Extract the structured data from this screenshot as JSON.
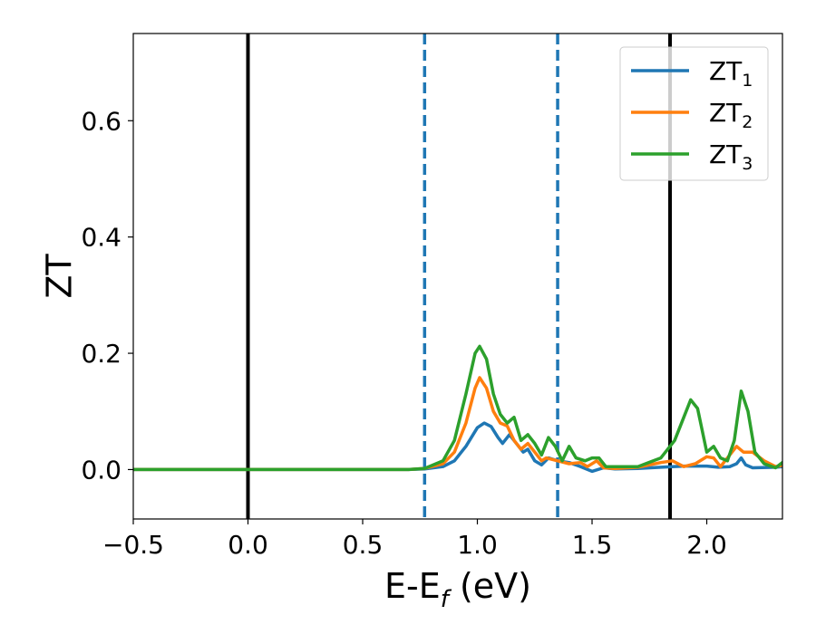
{
  "chart_data": {
    "type": "line",
    "xlabel": "E-E",
    "xlabel_sub": "f",
    "xlabel_unit": " (eV)",
    "ylabel": "ZT",
    "xlim": [
      -0.5,
      2.33
    ],
    "ylim": [
      -0.085,
      0.75
    ],
    "xticks": [
      -0.5,
      0.0,
      0.5,
      1.0,
      1.5,
      2.0
    ],
    "xtick_labels": [
      "−0.5",
      "0.0",
      "0.5",
      "1.0",
      "1.5",
      "2.0"
    ],
    "yticks": [
      0.0,
      0.2,
      0.4,
      0.6
    ],
    "ytick_labels": [
      "0.0",
      "0.2",
      "0.4",
      "0.6"
    ],
    "grid": false,
    "legend_position": "top-right",
    "vlines_solid": [
      0.0,
      1.84
    ],
    "vlines_dashed": [
      0.77,
      1.35
    ],
    "colors": {
      "zt1": "#1f77b4",
      "zt2": "#ff7f0e",
      "zt3": "#2ca02c",
      "solid_line": "#000000",
      "dashed_line": "#1f77b4"
    },
    "series": [
      {
        "name": "ZT",
        "sub": "1",
        "color": "#1f77b4",
        "points": [
          [
            -0.5,
            0
          ],
          [
            0.7,
            0
          ],
          [
            0.77,
            0.001
          ],
          [
            0.85,
            0.005
          ],
          [
            0.9,
            0.015
          ],
          [
            0.95,
            0.04
          ],
          [
            1.0,
            0.072
          ],
          [
            1.03,
            0.08
          ],
          [
            1.06,
            0.074
          ],
          [
            1.09,
            0.055
          ],
          [
            1.11,
            0.045
          ],
          [
            1.14,
            0.06
          ],
          [
            1.17,
            0.045
          ],
          [
            1.2,
            0.03
          ],
          [
            1.22,
            0.035
          ],
          [
            1.25,
            0.015
          ],
          [
            1.28,
            0.008
          ],
          [
            1.31,
            0.02
          ],
          [
            1.35,
            0.015
          ],
          [
            1.4,
            0.012
          ],
          [
            1.45,
            0.005
          ],
          [
            1.5,
            -0.003
          ],
          [
            1.55,
            0.003
          ],
          [
            1.6,
            0.001
          ],
          [
            1.7,
            0.002
          ],
          [
            1.8,
            0.004
          ],
          [
            1.9,
            0.006
          ],
          [
            2.0,
            0.006
          ],
          [
            2.05,
            0.004
          ],
          [
            2.1,
            0.005
          ],
          [
            2.13,
            0.01
          ],
          [
            2.15,
            0.02
          ],
          [
            2.17,
            0.008
          ],
          [
            2.2,
            0.003
          ],
          [
            2.3,
            0.004
          ],
          [
            2.33,
            0.005
          ]
        ]
      },
      {
        "name": "ZT",
        "sub": "2",
        "color": "#ff7f0e",
        "points": [
          [
            -0.5,
            0
          ],
          [
            0.7,
            0
          ],
          [
            0.77,
            0.002
          ],
          [
            0.85,
            0.01
          ],
          [
            0.9,
            0.03
          ],
          [
            0.95,
            0.08
          ],
          [
            0.99,
            0.14
          ],
          [
            1.01,
            0.158
          ],
          [
            1.04,
            0.14
          ],
          [
            1.07,
            0.1
          ],
          [
            1.1,
            0.08
          ],
          [
            1.13,
            0.075
          ],
          [
            1.16,
            0.05
          ],
          [
            1.19,
            0.035
          ],
          [
            1.22,
            0.045
          ],
          [
            1.25,
            0.03
          ],
          [
            1.28,
            0.015
          ],
          [
            1.3,
            0.02
          ],
          [
            1.35,
            0.015
          ],
          [
            1.4,
            0.01
          ],
          [
            1.45,
            0.012
          ],
          [
            1.48,
            0.005
          ],
          [
            1.52,
            0.015
          ],
          [
            1.55,
            0.003
          ],
          [
            1.6,
            0.002
          ],
          [
            1.7,
            0.004
          ],
          [
            1.8,
            0.012
          ],
          [
            1.85,
            0.015
          ],
          [
            1.9,
            0.005
          ],
          [
            1.95,
            0.01
          ],
          [
            2.0,
            0.022
          ],
          [
            2.03,
            0.02
          ],
          [
            2.06,
            0.005
          ],
          [
            2.1,
            0.025
          ],
          [
            2.13,
            0.04
          ],
          [
            2.16,
            0.03
          ],
          [
            2.2,
            0.03
          ],
          [
            2.25,
            0.015
          ],
          [
            2.3,
            0.005
          ],
          [
            2.33,
            0.007
          ]
        ]
      },
      {
        "name": "ZT",
        "sub": "3",
        "color": "#2ca02c",
        "points": [
          [
            -0.5,
            0
          ],
          [
            0.7,
            0
          ],
          [
            0.77,
            0.002
          ],
          [
            0.85,
            0.015
          ],
          [
            0.9,
            0.05
          ],
          [
            0.95,
            0.13
          ],
          [
            0.99,
            0.2
          ],
          [
            1.01,
            0.212
          ],
          [
            1.04,
            0.19
          ],
          [
            1.07,
            0.13
          ],
          [
            1.1,
            0.095
          ],
          [
            1.13,
            0.08
          ],
          [
            1.16,
            0.09
          ],
          [
            1.19,
            0.05
          ],
          [
            1.22,
            0.06
          ],
          [
            1.25,
            0.045
          ],
          [
            1.28,
            0.025
          ],
          [
            1.31,
            0.055
          ],
          [
            1.34,
            0.04
          ],
          [
            1.37,
            0.015
          ],
          [
            1.4,
            0.04
          ],
          [
            1.43,
            0.02
          ],
          [
            1.47,
            0.015
          ],
          [
            1.5,
            0.02
          ],
          [
            1.53,
            0.02
          ],
          [
            1.56,
            0.005
          ],
          [
            1.6,
            0.005
          ],
          [
            1.7,
            0.005
          ],
          [
            1.8,
            0.02
          ],
          [
            1.86,
            0.05
          ],
          [
            1.9,
            0.09
          ],
          [
            1.93,
            0.12
          ],
          [
            1.96,
            0.105
          ],
          [
            2.0,
            0.03
          ],
          [
            2.03,
            0.04
          ],
          [
            2.06,
            0.02
          ],
          [
            2.09,
            0.015
          ],
          [
            2.12,
            0.05
          ],
          [
            2.15,
            0.135
          ],
          [
            2.18,
            0.1
          ],
          [
            2.21,
            0.03
          ],
          [
            2.25,
            0.01
          ],
          [
            2.3,
            0.003
          ],
          [
            2.33,
            0.012
          ]
        ]
      }
    ]
  }
}
